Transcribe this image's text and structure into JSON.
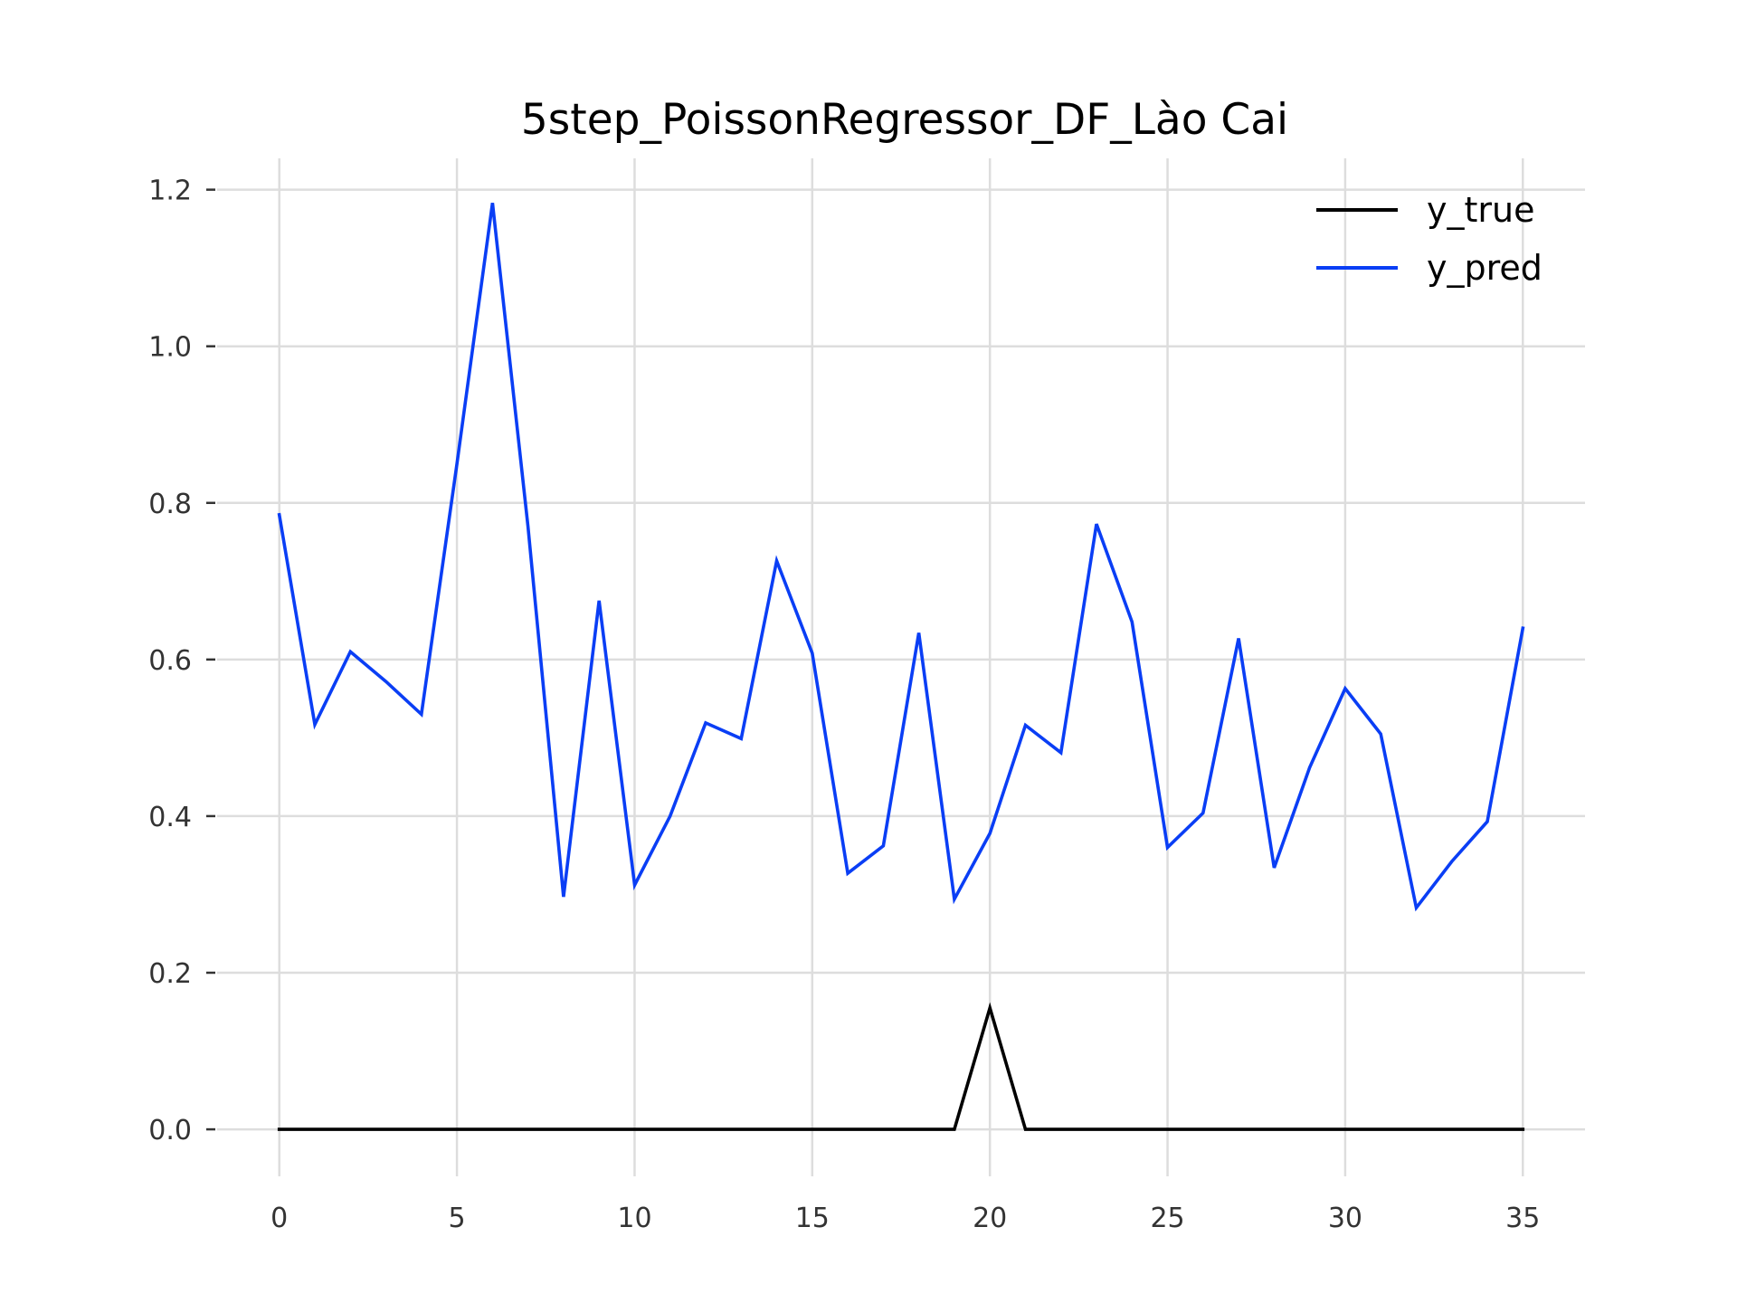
{
  "chart_data": {
    "type": "line",
    "title": "5step_PoissonRegressor_DF_Lào Cai",
    "xlabel": "",
    "ylabel": "",
    "xlim": [
      -1.75,
      36.75
    ],
    "ylim": [
      -0.06,
      1.24
    ],
    "xticks": [
      0,
      5,
      10,
      15,
      20,
      25,
      30,
      35
    ],
    "yticks": [
      0.0,
      0.2,
      0.4,
      0.6,
      0.8,
      1.0,
      1.2
    ],
    "ytick_labels": [
      "0.0",
      "0.2",
      "0.4",
      "0.6",
      "0.8",
      "1.0",
      "1.2"
    ],
    "grid": true,
    "legend_position": "top-right",
    "x": [
      0,
      1,
      2,
      3,
      4,
      5,
      6,
      7,
      8,
      9,
      10,
      11,
      12,
      13,
      14,
      15,
      16,
      17,
      18,
      19,
      20,
      21,
      22,
      23,
      24,
      25,
      26,
      27,
      28,
      29,
      30,
      31,
      32,
      33,
      34,
      35
    ],
    "series": [
      {
        "name": "y_true",
        "color": "#000000",
        "values": [
          0,
          0,
          0,
          0,
          0,
          0,
          0,
          0,
          0,
          0,
          0,
          0,
          0,
          0,
          0,
          0,
          0,
          0,
          0,
          0,
          0.155,
          0,
          0,
          0,
          0,
          0,
          0,
          0,
          0,
          0,
          0,
          0,
          0,
          0,
          0,
          0
        ]
      },
      {
        "name": "y_pred",
        "color": "#0a3ef5",
        "values": [
          0.785,
          0.517,
          0.61,
          0.572,
          0.53,
          0.85,
          1.183,
          0.77,
          0.297,
          0.675,
          0.312,
          0.4,
          0.519,
          0.499,
          0.726,
          0.608,
          0.327,
          0.362,
          0.634,
          0.294,
          0.378,
          0.516,
          0.481,
          0.773,
          0.648,
          0.36,
          0.404,
          0.627,
          0.334,
          0.462,
          0.563,
          0.505,
          0.283,
          0.342,
          0.393,
          0.64
        ]
      }
    ]
  }
}
